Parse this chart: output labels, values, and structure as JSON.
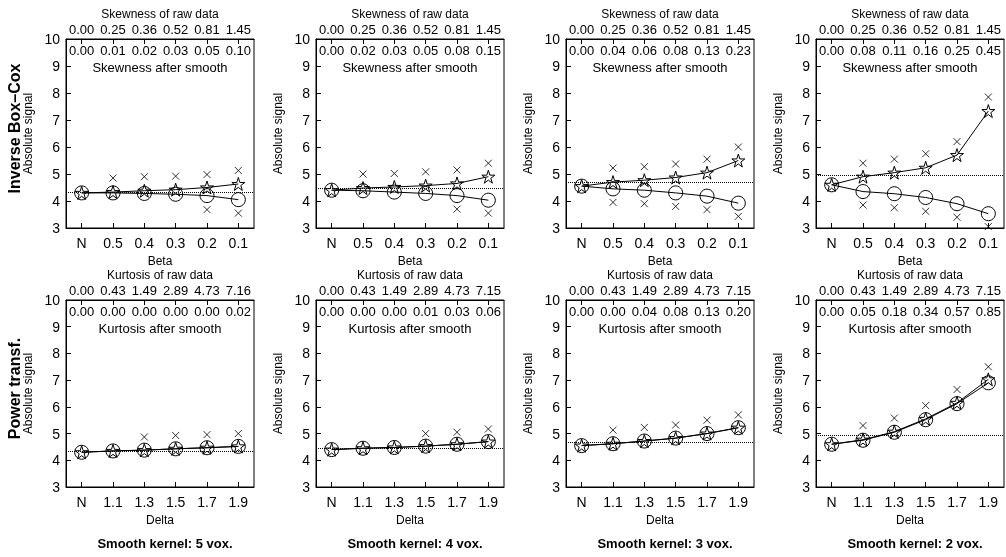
{
  "chart_data": [
    {
      "type": "line",
      "x2label": "Skewness of raw data",
      "subtitle": "Skewness after smooth",
      "xlabel": "Beta",
      "ylabel": "Absolute signal",
      "categories": [
        "N",
        "0.5",
        "0.4",
        "0.3",
        "0.2",
        "0.1"
      ],
      "ylim": [
        3,
        10
      ],
      "yticks": [
        3,
        4,
        5,
        6,
        7,
        8,
        9,
        10
      ],
      "series": [
        {
          "marker": "star",
          "color": "#000000",
          "values": [
            4.3,
            4.33,
            4.38,
            4.42,
            4.5,
            4.63
          ]
        },
        {
          "marker": "circle",
          "color": "#000000",
          "values": [
            4.3,
            4.3,
            4.28,
            4.25,
            4.2,
            4.05
          ]
        },
        {
          "type": "scatter",
          "marker": "cross",
          "color": "#000000",
          "values": [
            null,
            4.85,
            4.9,
            4.92,
            4.98,
            5.13
          ]
        },
        {
          "type": "scatter",
          "marker": "cross",
          "color": "#000000",
          "values": [
            null,
            null,
            null,
            null,
            3.68,
            3.55
          ]
        }
      ],
      "ref_lines": [
        {
          "axis": "y",
          "value": 4.32,
          "line_style": "dotted"
        }
      ],
      "annotations": [
        "Inverse Box–Cox",
        "0.00",
        "0.25",
        "0.36",
        "0.52",
        "0.81",
        "1.45",
        "0.00",
        "0.01",
        "0.02",
        "0.03",
        "0.05",
        "0.10"
      ]
    },
    {
      "type": "line",
      "x2label": "Skewness of raw data",
      "subtitle": "Skewness after smooth",
      "xlabel": "Beta",
      "ylabel": "Absolute signal",
      "categories": [
        "N",
        "0.5",
        "0.4",
        "0.3",
        "0.2",
        "0.1"
      ],
      "ylim": [
        3,
        10
      ],
      "yticks": [
        3,
        4,
        5,
        6,
        7,
        8,
        9,
        10
      ],
      "series": [
        {
          "marker": "star",
          "color": "#000000",
          "values": [
            4.4,
            4.48,
            4.52,
            4.57,
            4.65,
            4.9
          ]
        },
        {
          "marker": "circle",
          "color": "#000000",
          "values": [
            4.4,
            4.38,
            4.33,
            4.28,
            4.2,
            4.03
          ]
        },
        {
          "type": "scatter",
          "marker": "cross",
          "color": "#000000",
          "values": [
            null,
            5.0,
            5.02,
            5.08,
            5.15,
            5.4
          ]
        },
        {
          "type": "scatter",
          "marker": "cross",
          "color": "#000000",
          "values": [
            null,
            null,
            null,
            null,
            3.7,
            3.55
          ]
        }
      ],
      "ref_lines": [
        {
          "axis": "y",
          "value": 4.48,
          "line_style": "dotted"
        }
      ],
      "annotations": [
        "0.00",
        "0.25",
        "0.36",
        "0.52",
        "0.81",
        "1.45",
        "0.00",
        "0.02",
        "0.03",
        "0.05",
        "0.08",
        "0.15"
      ]
    },
    {
      "type": "line",
      "x2label": "Skewness of raw data",
      "subtitle": "Skewness after smooth",
      "xlabel": "Beta",
      "ylabel": "Absolute signal",
      "categories": [
        "N",
        "0.5",
        "0.4",
        "0.3",
        "0.2",
        "0.1"
      ],
      "ylim": [
        3,
        10
      ],
      "yticks": [
        3,
        4,
        5,
        6,
        7,
        8,
        9,
        10
      ],
      "series": [
        {
          "marker": "star",
          "color": "#000000",
          "values": [
            4.55,
            4.7,
            4.77,
            4.87,
            5.05,
            5.5
          ]
        },
        {
          "marker": "circle",
          "color": "#000000",
          "values": [
            4.55,
            4.45,
            4.4,
            4.3,
            4.18,
            3.92
          ]
        },
        {
          "type": "scatter",
          "marker": "cross",
          "color": "#000000",
          "values": [
            null,
            5.22,
            5.27,
            5.37,
            5.55,
            6.0
          ]
        },
        {
          "type": "scatter",
          "marker": "cross",
          "color": "#000000",
          "values": [
            null,
            3.95,
            3.9,
            3.8,
            3.68,
            3.43
          ]
        }
      ],
      "ref_lines": [
        {
          "axis": "y",
          "value": 4.68,
          "line_style": "dotted"
        }
      ],
      "annotations": [
        "0.00",
        "0.25",
        "0.36",
        "0.52",
        "0.81",
        "1.45",
        "0.00",
        "0.04",
        "0.06",
        "0.08",
        "0.13",
        "0.23"
      ]
    },
    {
      "type": "line",
      "x2label": "Skewness of raw data",
      "subtitle": "Skewness after smooth",
      "xlabel": "Beta",
      "ylabel": "Absolute signal",
      "categories": [
        "N",
        "0.5",
        "0.4",
        "0.3",
        "0.2",
        "0.1"
      ],
      "ylim": [
        3,
        10
      ],
      "yticks": [
        3,
        4,
        5,
        6,
        7,
        8,
        9,
        10
      ],
      "series": [
        {
          "marker": "star",
          "color": "#000000",
          "values": [
            4.6,
            4.9,
            5.05,
            5.23,
            5.7,
            7.33
          ]
        },
        {
          "marker": "circle",
          "color": "#000000",
          "values": [
            4.6,
            4.35,
            4.27,
            4.13,
            3.9,
            3.53
          ]
        },
        {
          "type": "scatter",
          "marker": "cross",
          "color": "#000000",
          "values": [
            null,
            5.4,
            5.55,
            5.75,
            6.2,
            7.85
          ]
        },
        {
          "type": "scatter",
          "marker": "cross",
          "color": "#000000",
          "values": [
            null,
            3.85,
            3.75,
            3.62,
            3.4,
            3.05
          ]
        }
      ],
      "ref_lines": [
        {
          "axis": "y",
          "value": 4.95,
          "line_style": "dotted"
        }
      ],
      "annotations": [
        "0.00",
        "0.25",
        "0.36",
        "0.52",
        "0.81",
        "1.45",
        "0.00",
        "0.08",
        "0.11",
        "0.16",
        "0.25",
        "0.45"
      ]
    },
    {
      "type": "line",
      "title": "Smooth kernel: 5 vox.",
      "x2label": "Kurtosis of raw data",
      "subtitle": "Kurtosis after smooth",
      "xlabel": "Delta",
      "ylabel": "Absolute signal",
      "categories": [
        "N",
        "1.1",
        "1.3",
        "1.5",
        "1.7",
        "1.9"
      ],
      "ylim": [
        3,
        10
      ],
      "yticks": [
        3,
        4,
        5,
        6,
        7,
        8,
        9,
        10
      ],
      "series": [
        {
          "marker": "circle",
          "color": "#000000",
          "values": [
            4.3,
            4.35,
            4.38,
            4.43,
            4.47,
            4.52
          ]
        },
        {
          "marker": "star",
          "color": "#000000",
          "values": [
            4.3,
            4.35,
            4.38,
            4.43,
            4.47,
            4.52
          ]
        },
        {
          "type": "scatter",
          "marker": "cross",
          "color": "#000000",
          "values": [
            null,
            null,
            4.87,
            4.93,
            4.96,
            5.0
          ]
        }
      ],
      "ref_lines": [
        {
          "axis": "y",
          "value": 4.33,
          "line_style": "dotted"
        }
      ],
      "annotations": [
        "Power transf.",
        "0.00",
        "0.43",
        "1.49",
        "2.89",
        "4.73",
        "7.16",
        "0.00",
        "0.00",
        "0.00",
        "0.00",
        "0.00",
        "0.02"
      ]
    },
    {
      "type": "line",
      "title": "Smooth kernel: 4 vox.",
      "x2label": "Kurtosis of raw data",
      "subtitle": "Kurtosis after smooth",
      "xlabel": "Delta",
      "ylabel": "Absolute signal",
      "categories": [
        "N",
        "1.1",
        "1.3",
        "1.5",
        "1.7",
        "1.9"
      ],
      "ylim": [
        3,
        10
      ],
      "yticks": [
        3,
        4,
        5,
        6,
        7,
        8,
        9,
        10
      ],
      "series": [
        {
          "marker": "circle",
          "color": "#000000",
          "values": [
            4.4,
            4.45,
            4.48,
            4.53,
            4.6,
            4.7
          ]
        },
        {
          "marker": "star",
          "color": "#000000",
          "values": [
            4.4,
            4.45,
            4.48,
            4.53,
            4.6,
            4.7
          ]
        },
        {
          "type": "scatter",
          "marker": "cross",
          "color": "#000000",
          "values": [
            null,
            null,
            null,
            5.0,
            5.05,
            5.17
          ]
        }
      ],
      "ref_lines": [
        {
          "axis": "y",
          "value": 4.45,
          "line_style": "dotted"
        }
      ],
      "annotations": [
        "0.00",
        "0.43",
        "1.49",
        "2.89",
        "4.73",
        "7.15",
        "0.00",
        "0.00",
        "0.00",
        "0.01",
        "0.03",
        "0.06"
      ]
    },
    {
      "type": "line",
      "title": "Smooth kernel: 3 vox.",
      "x2label": "Kurtosis of raw data",
      "subtitle": "Kurtosis after smooth",
      "xlabel": "Delta",
      "ylabel": "Absolute signal",
      "categories": [
        "N",
        "1.1",
        "1.3",
        "1.5",
        "1.7",
        "1.9"
      ],
      "ylim": [
        3,
        10
      ],
      "yticks": [
        3,
        4,
        5,
        6,
        7,
        8,
        9,
        10
      ],
      "series": [
        {
          "marker": "circle",
          "color": "#000000",
          "values": [
            4.55,
            4.62,
            4.72,
            4.83,
            5.0,
            5.22
          ]
        },
        {
          "marker": "star",
          "color": "#000000",
          "values": [
            4.55,
            4.62,
            4.72,
            4.83,
            5.0,
            5.22
          ]
        },
        {
          "type": "scatter",
          "marker": "cross",
          "color": "#000000",
          "values": [
            null,
            5.13,
            5.23,
            5.32,
            5.5,
            5.7
          ]
        }
      ],
      "ref_lines": [
        {
          "axis": "y",
          "value": 4.68,
          "line_style": "dotted"
        }
      ],
      "annotations": [
        "0.00",
        "0.43",
        "1.49",
        "2.89",
        "4.73",
        "7.15",
        "0.00",
        "0.00",
        "0.04",
        "0.08",
        "0.13",
        "0.20"
      ]
    },
    {
      "type": "line",
      "title": "Smooth kernel: 2 vox.",
      "x2label": "Kurtosis of raw data",
      "subtitle": "Kurtosis after smooth",
      "xlabel": "Delta",
      "ylabel": "Absolute signal",
      "categories": [
        "N",
        "1.1",
        "1.3",
        "1.5",
        "1.7",
        "1.9"
      ],
      "ylim": [
        3,
        10
      ],
      "yticks": [
        3,
        4,
        5,
        6,
        7,
        8,
        9,
        10
      ],
      "series": [
        {
          "marker": "star",
          "color": "#000000",
          "values": [
            4.6,
            4.77,
            5.07,
            5.55,
            6.15,
            7.03
          ]
        },
        {
          "marker": "circle",
          "color": "#000000",
          "values": [
            4.6,
            4.75,
            5.05,
            5.52,
            6.12,
            6.9
          ]
        },
        {
          "type": "scatter",
          "marker": "cross",
          "color": "#000000",
          "values": [
            null,
            5.3,
            5.58,
            6.05,
            6.65,
            7.5
          ]
        }
      ],
      "ref_lines": [
        {
          "axis": "y",
          "value": 4.95,
          "line_style": "dotted"
        }
      ],
      "annotations": [
        "0.00",
        "0.43",
        "1.49",
        "2.89",
        "4.73",
        "7.15",
        "0.00",
        "0.05",
        "0.18",
        "0.34",
        "0.57",
        "0.85"
      ]
    }
  ]
}
